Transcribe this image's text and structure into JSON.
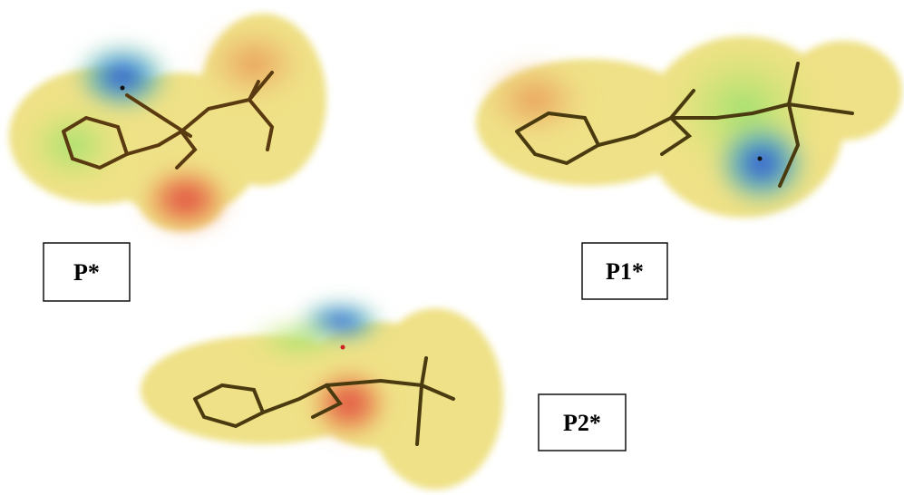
{
  "panels": [
    {
      "label": "P*"
    },
    {
      "label": "P1*"
    },
    {
      "label": "P2*"
    }
  ]
}
